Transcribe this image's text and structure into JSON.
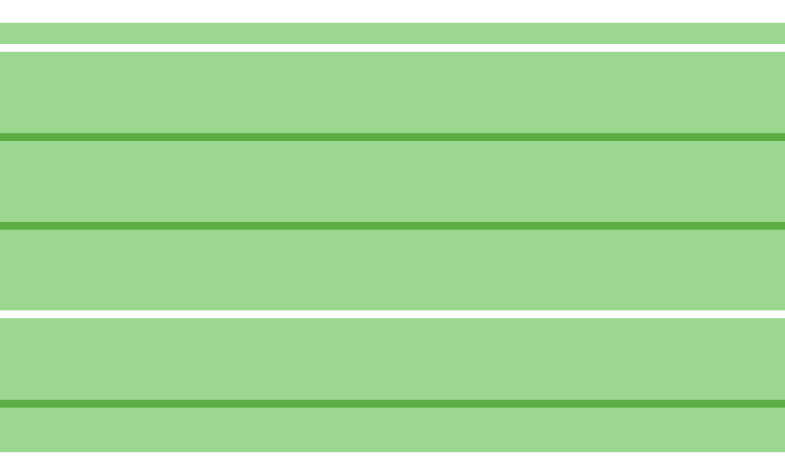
{
  "colors": {
    "background": "#ffffff",
    "band_fill": "#9bd78f",
    "divider": "#5cad42"
  }
}
